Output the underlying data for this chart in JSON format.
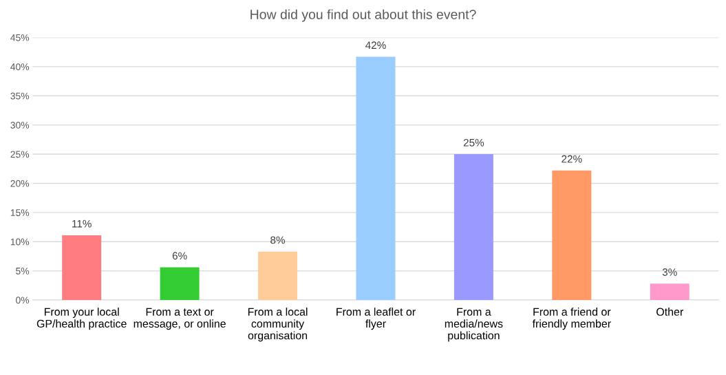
{
  "chart_data": {
    "type": "bar",
    "title": "How did you find out about this event?",
    "categories": [
      "From your local\nGP/health practice",
      "From a text or\nmessage, or online",
      "From a local\ncommunity\norganisation",
      "From a leaflet or\nflyer",
      "From a\nmedia/news\npublication",
      "From a friend or\nfriendly member",
      "Other"
    ],
    "values": [
      11.1,
      5.6,
      8.3,
      41.7,
      25.0,
      22.2,
      2.8
    ],
    "value_labels": [
      "11%",
      "6%",
      "8%",
      "42%",
      "25%",
      "22%",
      "3%"
    ],
    "colors": [
      "#ff7c80",
      "#33cc33",
      "#ffcc99",
      "#99ccff",
      "#9999ff",
      "#ff9966",
      "#ff99cc"
    ],
    "ylim": [
      0,
      45
    ],
    "yticks": [
      {
        "value": 0,
        "label": "0%"
      },
      {
        "value": 5,
        "label": "5%"
      },
      {
        "value": 10,
        "label": "10%"
      },
      {
        "value": 15,
        "label": "15%"
      },
      {
        "value": 20,
        "label": "20%"
      },
      {
        "value": 25,
        "label": "25%"
      },
      {
        "value": 30,
        "label": "30%"
      },
      {
        "value": 35,
        "label": "35%"
      },
      {
        "value": 40,
        "label": "40%"
      },
      {
        "value": 45,
        "label": "45%"
      }
    ],
    "grid": "y"
  }
}
